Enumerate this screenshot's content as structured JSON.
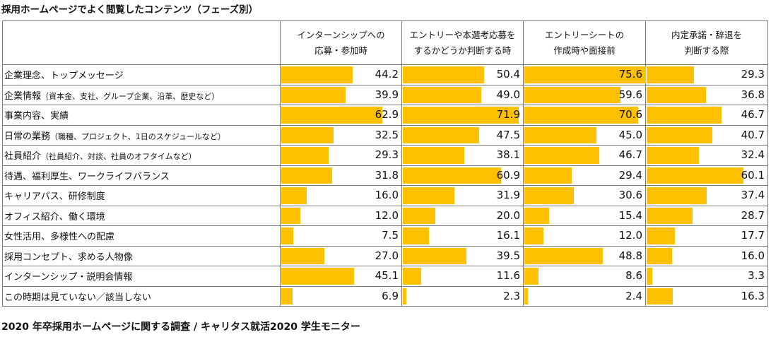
{
  "title": "採用ホームページでよく閲覧したコンテンツ（フェーズ別）",
  "source": "2020 年卒採用ホームページに関する調査 / キャリタス就活2020 学生モニター",
  "chart_data": {
    "type": "table",
    "title": "採用ホームページでよく閲覧したコンテンツ（フェーズ別）",
    "max_value": 75.6,
    "columns": [
      {
        "name": "インターンシップへの応募・参加時",
        "lines": [
          "インターンシップへの",
          "応募・参加時"
        ]
      },
      {
        "name": "エントリーや本選考応募をするかどうか判断する時",
        "lines": [
          "エントリーや本選考応募を",
          "するかどうか判断する時"
        ]
      },
      {
        "name": "エントリーシートの作成時や面接前",
        "lines": [
          "エントリーシートの",
          "作成時や面接前"
        ]
      },
      {
        "name": "内定承諾・辞退を判断する際",
        "lines": [
          "内定承諾・辞退を",
          "判断する際"
        ]
      }
    ],
    "rows": [
      {
        "label": "企業理念、トップメッセージ",
        "sub": "",
        "values": [
          44.2,
          50.4,
          75.6,
          29.3
        ],
        "display": [
          "44.2",
          "50.4",
          "75.6",
          "29.3"
        ]
      },
      {
        "label": "企業情報",
        "sub": "（資本金、支社、グループ企業、沿革、歴史など）",
        "values": [
          39.9,
          49.0,
          59.6,
          36.8
        ],
        "display": [
          "39.9",
          "49.0",
          "59.6",
          "36.8"
        ]
      },
      {
        "label": "事業内容、実績",
        "sub": "",
        "values": [
          62.9,
          71.9,
          70.6,
          46.7
        ],
        "display": [
          "62.9",
          "71.9",
          "70.6",
          "46.7"
        ]
      },
      {
        "label": "日常の業務",
        "sub": "（職種、プロジェクト、1日のスケジュールなど）",
        "values": [
          32.5,
          47.5,
          45.0,
          40.7
        ],
        "display": [
          "32.5",
          "47.5",
          "45.0",
          "40.7"
        ]
      },
      {
        "label": "社員紹介",
        "sub": "（社員紹介、対談、社員のオフタイムなど）",
        "values": [
          29.3,
          38.1,
          46.7,
          32.4
        ],
        "display": [
          "29.3",
          "38.1",
          "46.7",
          "32.4"
        ]
      },
      {
        "label": "待遇、福利厚生、ワークライフバランス",
        "sub": "",
        "values": [
          31.8,
          60.9,
          29.4,
          60.1
        ],
        "display": [
          "31.8",
          "60.9",
          "29.4",
          "60.1"
        ]
      },
      {
        "label": "キャリアパス、研修制度",
        "sub": "",
        "values": [
          16.0,
          31.9,
          30.6,
          37.4
        ],
        "display": [
          "16.0",
          "31.9",
          "30.6",
          "37.4"
        ]
      },
      {
        "label": "オフィス紹介、働く環境",
        "sub": "",
        "values": [
          12.0,
          20.0,
          15.4,
          28.7
        ],
        "display": [
          "12.0",
          "20.0",
          "15.4",
          "28.7"
        ]
      },
      {
        "label": "女性活用、多様性への配慮",
        "sub": "",
        "values": [
          7.5,
          16.1,
          12.0,
          17.7
        ],
        "display": [
          "7.5",
          "16.1",
          "12.0",
          "17.7"
        ]
      },
      {
        "label": "採用コンセプト、求める人物像",
        "sub": "",
        "values": [
          27.0,
          39.5,
          48.8,
          16.0
        ],
        "display": [
          "27.0",
          "39.5",
          "48.8",
          "16.0"
        ]
      },
      {
        "label": "インターンシップ・説明会情報",
        "sub": "",
        "values": [
          45.1,
          11.6,
          8.6,
          3.3
        ],
        "display": [
          "45.1",
          "11.6",
          "8.6",
          "3.3"
        ]
      },
      {
        "label": "この時期は見ていない／該当しない",
        "sub": "",
        "values": [
          6.9,
          2.3,
          2.4,
          16.3
        ],
        "display": [
          "6.9",
          "2.3",
          "2.4",
          "16.3"
        ]
      }
    ],
    "bar_color": "#ffc000"
  }
}
